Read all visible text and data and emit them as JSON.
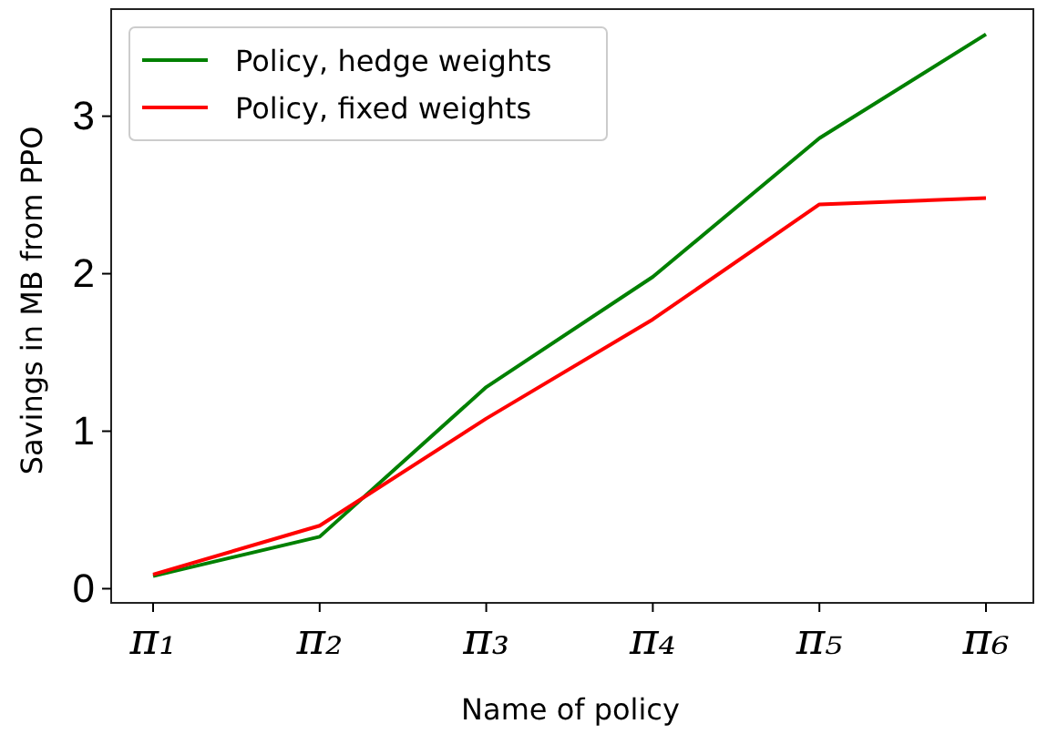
{
  "chart_data": {
    "type": "line",
    "xlabel": "Name of policy",
    "ylabel": "Savings in MB from PPO",
    "categories": [
      "π₁",
      "π₂",
      "π₃",
      "π₄",
      "π₅",
      "π₆"
    ],
    "series": [
      {
        "name": "Policy, hedge weights",
        "color": "#008000",
        "values": [
          0.08,
          0.33,
          1.28,
          1.98,
          2.86,
          3.52
        ]
      },
      {
        "name": "Policy, fixed weights",
        "color": "#ff0000",
        "values": [
          0.09,
          0.4,
          1.08,
          1.71,
          2.44,
          2.48
        ]
      }
    ],
    "ylim": [
      -0.09,
      3.68
    ],
    "yticks": [
      0,
      1,
      2,
      3
    ],
    "grid": false,
    "legend": "top left",
    "marker": "none",
    "line_style": "solid"
  }
}
